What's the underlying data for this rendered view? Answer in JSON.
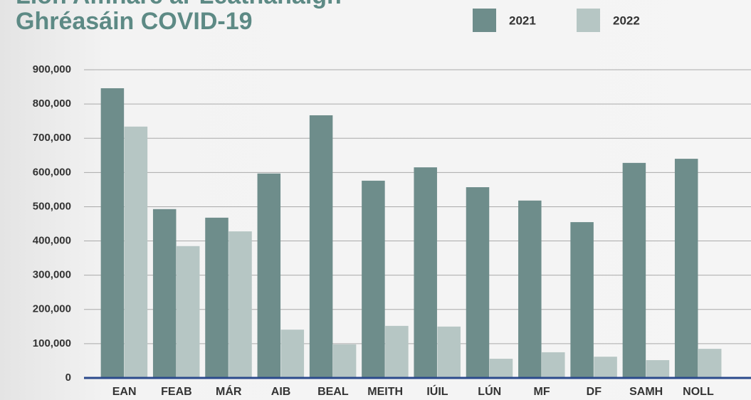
{
  "chart_data": {
    "type": "bar",
    "title_lines": [
      "Líon Amharc ar Leathanaigh",
      "Ghréasáin COVID-19"
    ],
    "categories": [
      "EAN",
      "FEAB",
      "MÁR",
      "AIB",
      "BEAL",
      "MEITH",
      "IÚIL",
      "LÚN",
      "MF",
      "DF",
      "SAMH",
      "NOLL"
    ],
    "series": [
      {
        "name": "2021",
        "color": "#6e8d8b",
        "values": [
          846000,
          493000,
          468000,
          597000,
          767000,
          576000,
          615000,
          557000,
          518000,
          455000,
          628000,
          640000
        ]
      },
      {
        "name": "2022",
        "color": "#b6c6c4",
        "values": [
          734000,
          385000,
          428000,
          141000,
          98000,
          152000,
          150000,
          56000,
          75000,
          62000,
          52000,
          85000
        ]
      }
    ],
    "ylim": [
      0,
      900000
    ],
    "yticks": [
      0,
      {
        "value": 100000,
        "label": "100,000"
      },
      {
        "value": 200000,
        "label": "200,000"
      },
      {
        "value": 300000,
        "label": "300,000"
      },
      {
        "value": 400000,
        "label": "400,000"
      },
      {
        "value": 500000,
        "label": "500,000"
      },
      {
        "value": 600000,
        "label": "600,000"
      },
      {
        "value": 700000,
        "label": "700,000"
      },
      {
        "value": 800000,
        "label": "800,000"
      },
      {
        "value": 900000,
        "label": "900,000"
      }
    ],
    "grid": true,
    "legend": "top"
  }
}
